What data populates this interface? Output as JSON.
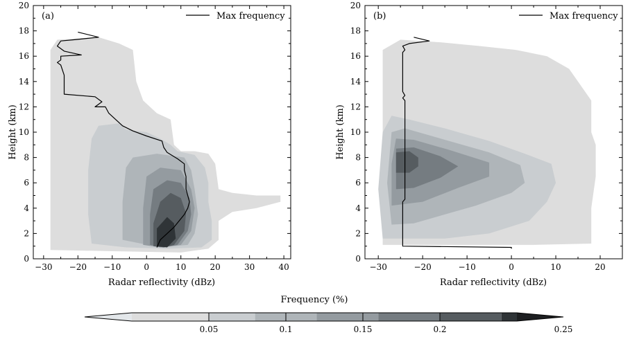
{
  "chart_data": [
    {
      "type": "heatmap",
      "panel_label": "(a)",
      "xlabel": "Radar reflectivity (dBz)",
      "ylabel": "Height (km)",
      "xlim": [
        -33,
        42
      ],
      "ylim": [
        0,
        20
      ],
      "xticks": [
        -30,
        -20,
        -10,
        0,
        10,
        20,
        30,
        40
      ],
      "yticks": [
        0,
        2,
        4,
        6,
        8,
        10,
        12,
        14,
        16,
        18,
        20
      ],
      "legend": {
        "label": "Max frequency",
        "position": "top-right"
      },
      "max_frequency_line": [
        [
          3,
          0.9
        ],
        [
          4,
          1.5
        ],
        [
          6,
          2.0
        ],
        [
          8,
          2.5
        ],
        [
          9.5,
          3.0
        ],
        [
          11,
          3.5
        ],
        [
          12,
          4.0
        ],
        [
          12.5,
          4.5
        ],
        [
          12,
          5.0
        ],
        [
          11.5,
          5.5
        ],
        [
          11.5,
          6.0
        ],
        [
          11.5,
          6.5
        ],
        [
          11,
          7.0
        ],
        [
          11,
          7.5
        ],
        [
          9,
          7.9
        ],
        [
          6,
          8.4
        ],
        [
          5,
          8.8
        ],
        [
          4.5,
          9.3
        ],
        [
          0,
          9.7
        ],
        [
          -4,
          10.1
        ],
        [
          -7,
          10.5
        ],
        [
          -9,
          11.0
        ],
        [
          -11,
          11.5
        ],
        [
          -12,
          12.0
        ],
        [
          -15,
          12.0
        ],
        [
          -13,
          12.4
        ],
        [
          -15,
          12.8
        ],
        [
          -24,
          13.0
        ],
        [
          -24,
          13.5
        ],
        [
          -24,
          14.5
        ],
        [
          -25,
          15.3
        ],
        [
          -26,
          15.5
        ],
        [
          -25,
          15.7
        ],
        [
          -25,
          16.0
        ],
        [
          -19,
          16.1
        ],
        [
          -24,
          16.4
        ],
        [
          -26,
          16.8
        ],
        [
          -25,
          17.2
        ],
        [
          -21,
          17.3
        ],
        [
          -14,
          17.5
        ],
        [
          -20,
          17.9
        ]
      ],
      "density_regions": [
        {
          "level": 0.02,
          "outline": [
            [
              -28,
              0.7
            ],
            [
              -28,
              16.5
            ],
            [
              -26,
              17.3
            ],
            [
              -14,
              17.5
            ],
            [
              -8,
              17.0
            ],
            [
              -4,
              16.5
            ],
            [
              -3,
              14.0
            ],
            [
              -1,
              12.5
            ],
            [
              3,
              11.5
            ],
            [
              7,
              11.0
            ],
            [
              8,
              9.0
            ],
            [
              10,
              8.5
            ],
            [
              14,
              8.5
            ],
            [
              18,
              8.3
            ],
            [
              20,
              7.5
            ],
            [
              21,
              5.5
            ],
            [
              25,
              5.2
            ],
            [
              32,
              5.0
            ],
            [
              39,
              5.0
            ],
            [
              39,
              4.5
            ],
            [
              32,
              4.0
            ],
            [
              25,
              3.7
            ],
            [
              21,
              3.0
            ],
            [
              21,
              1.5
            ],
            [
              18,
              0.8
            ],
            [
              10,
              0.5
            ],
            [
              -10,
              0.6
            ]
          ]
        },
        {
          "level": 0.05,
          "outline": [
            [
              -16,
              1.2
            ],
            [
              -17,
              3.5
            ],
            [
              -17,
              7.0
            ],
            [
              -16,
              9.5
            ],
            [
              -14,
              10.5
            ],
            [
              -8,
              10.7
            ],
            [
              -6,
              10.2
            ],
            [
              0,
              10.0
            ],
            [
              4,
              9.5
            ],
            [
              7,
              9.0
            ],
            [
              9,
              8.5
            ],
            [
              14,
              8.2
            ],
            [
              17,
              7.2
            ],
            [
              18,
              6.0
            ],
            [
              18,
              4.5
            ],
            [
              19,
              3.0
            ],
            [
              19,
              1.5
            ],
            [
              16,
              0.9
            ],
            [
              6,
              0.8
            ],
            [
              -6,
              0.9
            ]
          ]
        },
        {
          "level": 0.08,
          "outline": [
            [
              -7,
              1.5
            ],
            [
              -7,
              4.5
            ],
            [
              -6,
              7.2
            ],
            [
              -4,
              8.0
            ],
            [
              3,
              8.3
            ],
            [
              11,
              8.0
            ],
            [
              13,
              7.0
            ],
            [
              14,
              5.5
            ],
            [
              15,
              3.5
            ],
            [
              14,
              2.0
            ],
            [
              12,
              1.1
            ],
            [
              4,
              0.9
            ]
          ]
        },
        {
          "level": 0.12,
          "outline": [
            [
              -1,
              1.1
            ],
            [
              -1,
              4.0
            ],
            [
              0,
              6.5
            ],
            [
              4,
              7.2
            ],
            [
              10,
              7.0
            ],
            [
              13,
              5.5
            ],
            [
              14,
              4.0
            ],
            [
              13,
              2.2
            ],
            [
              10,
              1.1
            ],
            [
              4,
              0.9
            ]
          ]
        },
        {
          "level": 0.16,
          "outline": [
            [
              1,
              1.1
            ],
            [
              1,
              3.5
            ],
            [
              2,
              5.5
            ],
            [
              6,
              6.2
            ],
            [
              10,
              6.0
            ],
            [
              12.5,
              4.8
            ],
            [
              13,
              3.5
            ],
            [
              12,
              2.2
            ],
            [
              9,
              1.1
            ],
            [
              5,
              0.9
            ]
          ]
        },
        {
          "level": 0.2,
          "outline": [
            [
              2,
              1.0
            ],
            [
              2,
              2.8
            ],
            [
              4,
              4.5
            ],
            [
              7,
              5.2
            ],
            [
              10,
              4.8
            ],
            [
              11.5,
              3.6
            ],
            [
              11,
              2.2
            ],
            [
              8,
              1.1
            ],
            [
              5,
              0.9
            ]
          ]
        },
        {
          "level": 0.24,
          "outline": [
            [
              3,
              1.0
            ],
            [
              3,
              2.4
            ],
            [
              6,
              3.3
            ],
            [
              8,
              2.8
            ],
            [
              8.5,
              1.6
            ],
            [
              6,
              0.9
            ]
          ]
        }
      ]
    },
    {
      "type": "heatmap",
      "panel_label": "(b)",
      "xlabel": "Radar reflectivity (dBz)",
      "ylabel": "Height (km)",
      "xlim": [
        -33,
        25
      ],
      "ylim": [
        0,
        20
      ],
      "xticks": [
        -30,
        -20,
        -10,
        0,
        10,
        20
      ],
      "yticks": [
        0,
        2,
        4,
        6,
        8,
        10,
        12,
        14,
        16,
        18,
        20
      ],
      "legend": {
        "label": "Max frequency",
        "position": "top-right"
      },
      "max_frequency_line": [
        [
          0,
          0.8
        ],
        [
          0,
          0.9
        ],
        [
          -24.5,
          1.0
        ],
        [
          -24.5,
          1.5
        ],
        [
          -24.5,
          4.5
        ],
        [
          -24,
          4.7
        ],
        [
          -24,
          7.0
        ],
        [
          -24,
          12.5
        ],
        [
          -24.5,
          12.7
        ],
        [
          -24,
          12.9
        ],
        [
          -24.5,
          13.2
        ],
        [
          -24.5,
          16.3
        ],
        [
          -24,
          16.5
        ],
        [
          -24.5,
          16.8
        ],
        [
          -23,
          17.0
        ],
        [
          -18.5,
          17.2
        ],
        [
          -22,
          17.5
        ]
      ],
      "density_regions": [
        {
          "level": 0.02,
          "outline": [
            [
              -29,
              1.1
            ],
            [
              -29,
              16.5
            ],
            [
              -25,
              17.3
            ],
            [
              -16,
              17.1
            ],
            [
              -7,
              16.8
            ],
            [
              1,
              16.5
            ],
            [
              8,
              16.0
            ],
            [
              13,
              15.0
            ],
            [
              16,
              13.5
            ],
            [
              18,
              12.5
            ],
            [
              18,
              10.0
            ],
            [
              19,
              9.0
            ],
            [
              19,
              6.5
            ],
            [
              18,
              4.0
            ],
            [
              18,
              1.2
            ],
            [
              5,
              1.1
            ],
            [
              -10,
              1.1
            ]
          ]
        },
        {
          "level": 0.05,
          "outline": [
            [
              -29,
              1.6
            ],
            [
              -30,
              5.5
            ],
            [
              -29,
              10.0
            ],
            [
              -27,
              11.3
            ],
            [
              -23,
              11.0
            ],
            [
              -15,
              10.3
            ],
            [
              -5,
              9.3
            ],
            [
              3,
              8.3
            ],
            [
              9,
              7.5
            ],
            [
              10,
              6.0
            ],
            [
              8,
              4.5
            ],
            [
              4,
              3.0
            ],
            [
              -5,
              2.0
            ],
            [
              -15,
              1.6
            ]
          ]
        },
        {
          "level": 0.08,
          "outline": [
            [
              -27,
              2.7
            ],
            [
              -28,
              6.0
            ],
            [
              -27,
              10.0
            ],
            [
              -24,
              10.3
            ],
            [
              -15,
              9.4
            ],
            [
              -5,
              8.4
            ],
            [
              2,
              7.4
            ],
            [
              3,
              6.0
            ],
            [
              0,
              5.2
            ],
            [
              -8,
              4.2
            ],
            [
              -15,
              3.5
            ],
            [
              -22,
              2.8
            ]
          ]
        },
        {
          "level": 0.12,
          "outline": [
            [
              -27,
              4.2
            ],
            [
              -27,
              7.5
            ],
            [
              -26,
              9.5
            ],
            [
              -22,
              9.4
            ],
            [
              -14,
              8.6
            ],
            [
              -5,
              7.6
            ],
            [
              -5,
              6.5
            ],
            [
              -12,
              5.6
            ],
            [
              -20,
              4.5
            ]
          ]
        },
        {
          "level": 0.16,
          "outline": [
            [
              -26,
              5.5
            ],
            [
              -26,
              8.7
            ],
            [
              -22,
              8.8
            ],
            [
              -16,
              8.1
            ],
            [
              -12,
              7.3
            ],
            [
              -16,
              6.4
            ],
            [
              -22,
              5.6
            ]
          ]
        },
        {
          "level": 0.2,
          "outline": [
            [
              -26,
              6.8
            ],
            [
              -26,
              8.4
            ],
            [
              -23,
              8.5
            ],
            [
              -21,
              8.0
            ],
            [
              -21,
              7.3
            ],
            [
              -23,
              6.8
            ]
          ]
        }
      ]
    }
  ],
  "colorbar": {
    "label": "Frequency (%)",
    "ticks": [
      0.05,
      0.1,
      0.15,
      0.2,
      0.25
    ],
    "range": [
      0.0,
      0.25
    ],
    "levels": [
      0.02,
      0.05,
      0.08,
      0.12,
      0.16,
      0.2,
      0.24
    ],
    "level_colors": [
      "#dddddd",
      "#c9cdd0",
      "#afb5b9",
      "#949ba0",
      "#757c81",
      "#565c60",
      "#2f3437"
    ],
    "below_color": "#e3e7ea",
    "above_color": "#1d1f21"
  },
  "style": {
    "line_color": "#000000",
    "axis_color": "#000000"
  }
}
